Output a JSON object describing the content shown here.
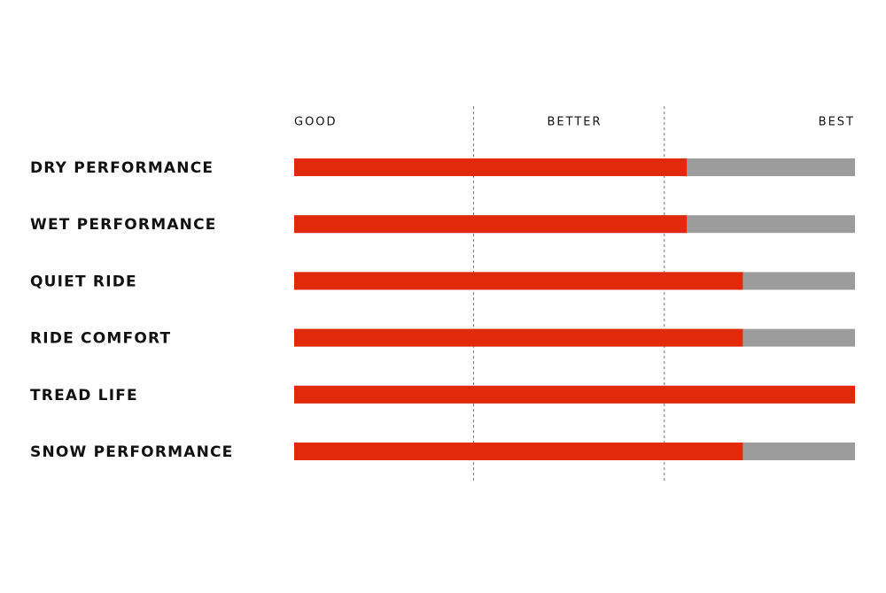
{
  "chart_data": {
    "type": "hbar",
    "categories": [
      "DRY PERFORMANCE",
      "WET PERFORMANCE",
      "QUIET RIDE",
      "RIDE COMFORT",
      "TREAD LIFE",
      "SNOW PERFORMANCE"
    ],
    "values": [
      70,
      70,
      80,
      80,
      100,
      80
    ],
    "color": "#e12a0a",
    "track_color": "#9c9c9c",
    "xlim": [
      0,
      100
    ],
    "xticks": [
      {
        "value": 0,
        "label": "GOOD"
      },
      {
        "value": 50,
        "label": "BETTER"
      },
      {
        "value": 100,
        "label": "BEST"
      }
    ],
    "dividers": [
      32,
      66
    ]
  }
}
